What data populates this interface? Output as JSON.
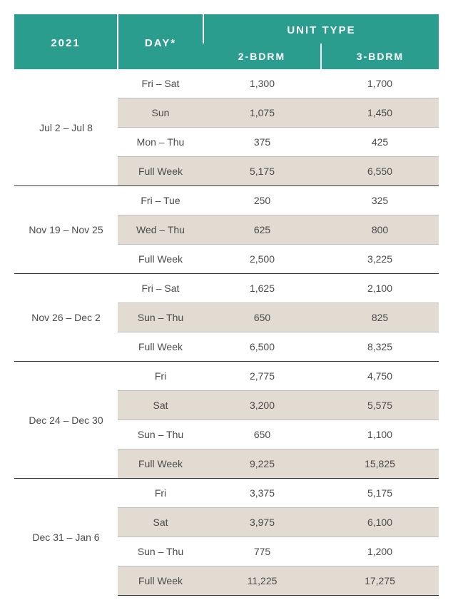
{
  "header": {
    "year": "2021",
    "day": "DAY*",
    "unit_type": "UNIT TYPE",
    "col1": "2-BDRM",
    "col2": "3-BDRM"
  },
  "style": {
    "header_bg": "#2a9d8f",
    "header_fg": "#ffffff",
    "alt_row_bg": "#e1dbd1",
    "text_color": "#4a4a4a",
    "group_divider": "#333333",
    "row_divider": "#bfbfbf",
    "font_size_header": 15,
    "font_size_body": 14
  },
  "groups": [
    {
      "range": "Jul 2 – Jul 8",
      "rows": [
        {
          "day": "Fri – Sat",
          "b2": "1,300",
          "b3": "1,700",
          "alt": false
        },
        {
          "day": "Sun",
          "b2": "1,075",
          "b3": "1,450",
          "alt": true
        },
        {
          "day": "Mon – Thu",
          "b2": "375",
          "b3": "425",
          "alt": false
        },
        {
          "day": "Full Week",
          "b2": "5,175",
          "b3": "6,550",
          "alt": true
        }
      ]
    },
    {
      "range": "Nov 19 – Nov 25",
      "rows": [
        {
          "day": "Fri – Tue",
          "b2": "250",
          "b3": "325",
          "alt": false
        },
        {
          "day": "Wed – Thu",
          "b2": "625",
          "b3": "800",
          "alt": true
        },
        {
          "day": "Full Week",
          "b2": "2,500",
          "b3": "3,225",
          "alt": false
        }
      ]
    },
    {
      "range": "Nov 26 – Dec 2",
      "rows": [
        {
          "day": "Fri – Sat",
          "b2": "1,625",
          "b3": "2,100",
          "alt": false
        },
        {
          "day": "Sun – Thu",
          "b2": "650",
          "b3": "825",
          "alt": true
        },
        {
          "day": "Full Week",
          "b2": "6,500",
          "b3": "8,325",
          "alt": false
        }
      ]
    },
    {
      "range": "Dec 24 – Dec 30",
      "rows": [
        {
          "day": "Fri",
          "b2": "2,775",
          "b3": "4,750",
          "alt": false
        },
        {
          "day": "Sat",
          "b2": "3,200",
          "b3": "5,575",
          "alt": true
        },
        {
          "day": "Sun – Thu",
          "b2": "650",
          "b3": "1,100",
          "alt": false
        },
        {
          "day": "Full Week",
          "b2": "9,225",
          "b3": "15,825",
          "alt": true
        }
      ]
    },
    {
      "range": "Dec 31 – Jan 6",
      "rows": [
        {
          "day": "Fri",
          "b2": "3,375",
          "b3": "5,175",
          "alt": false
        },
        {
          "day": "Sat",
          "b2": "3,975",
          "b3": "6,100",
          "alt": true
        },
        {
          "day": "Sun – Thu",
          "b2": "775",
          "b3": "1,200",
          "alt": false
        },
        {
          "day": "Full Week",
          "b2": "11,225",
          "b3": "17,275",
          "alt": true
        }
      ]
    }
  ]
}
